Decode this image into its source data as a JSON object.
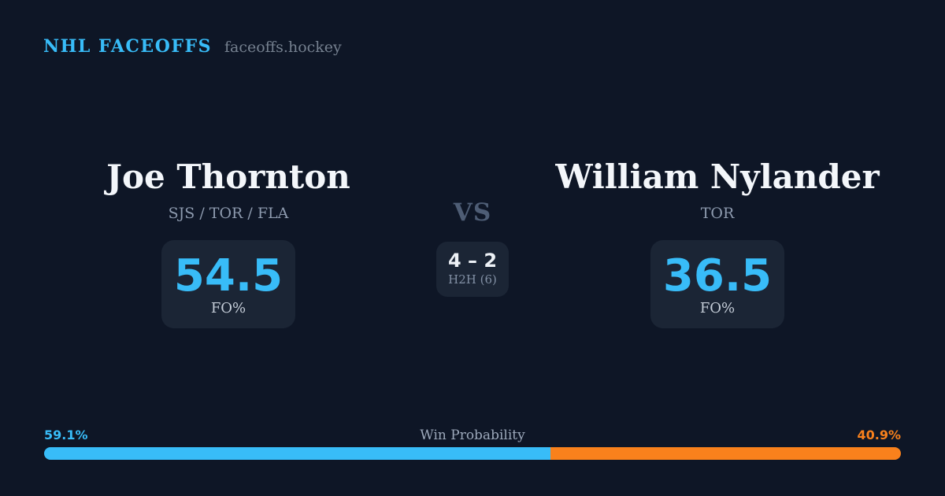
{
  "brand": {
    "title": "NHL FACEOFFS",
    "domain": "faceoffs.hockey"
  },
  "players": {
    "left": {
      "name": "Joe Thornton",
      "teams": "SJS / TOR / FLA",
      "stat_value": "54.5",
      "stat_label": "FO%"
    },
    "right": {
      "name": "William Nylander",
      "teams": "TOR",
      "stat_value": "36.5",
      "stat_label": "FO%"
    }
  },
  "versus": {
    "label": "VS",
    "h2h_score": "4 – 2",
    "h2h_label": "H2H (6)"
  },
  "win_probability": {
    "title": "Win Probability",
    "left_pct_label": "59.1%",
    "right_pct_label": "40.9%",
    "left_value": 59.1,
    "right_value": 40.9
  },
  "colors": {
    "background": "#0e1626",
    "card-bg": "#1b2535",
    "accent-blue": "#38bcf8",
    "accent-orange": "#f9811c"
  }
}
